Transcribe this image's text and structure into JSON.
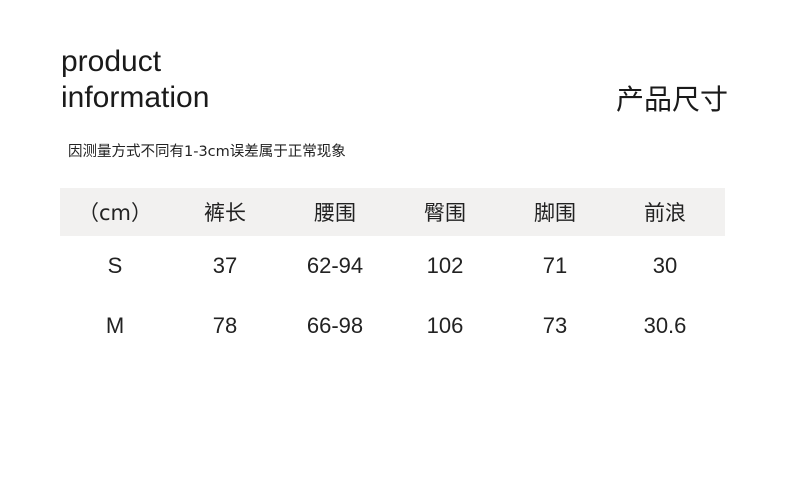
{
  "title_lines": [
    "product",
    "information"
  ],
  "cn_title": "产品尺寸",
  "note": "因测量方式不同有1-3cm误差属于正常现象",
  "table": {
    "headers": [
      "（cm）",
      "裤长",
      "腰围",
      "臀围",
      "脚围",
      "前浪"
    ],
    "rows": [
      [
        "S",
        "37",
        "62-94",
        "102",
        "71",
        "30"
      ],
      [
        "M",
        "78",
        "66-98",
        "106",
        "73",
        "30.6"
      ]
    ]
  },
  "colors": {
    "header_bg": "#f2f1f0",
    "text": "#222222"
  }
}
